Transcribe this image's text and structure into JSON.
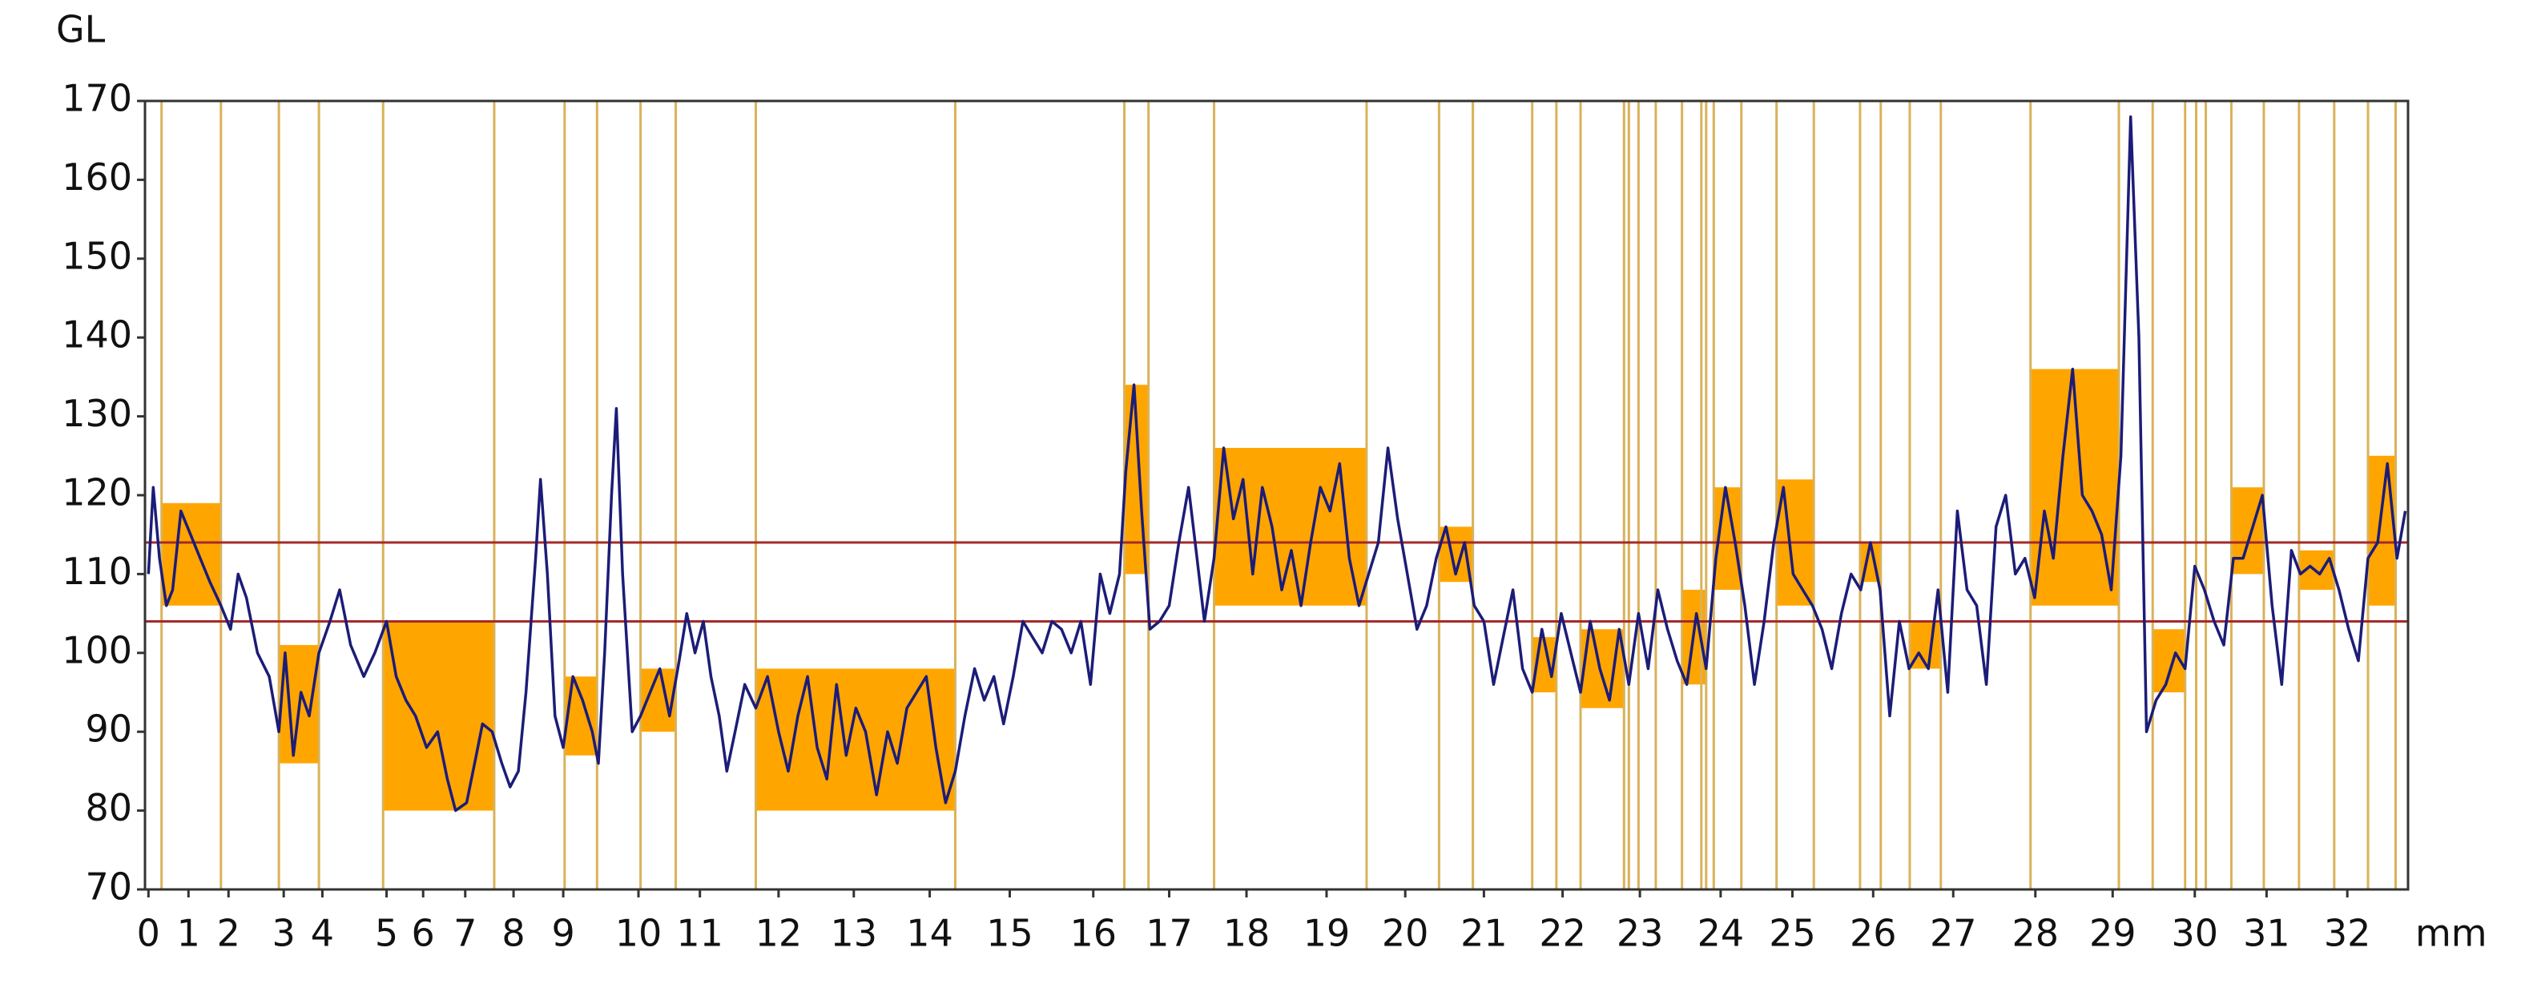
{
  "chart_data": {
    "type": "line",
    "y_label": "GL",
    "x_label": "mm",
    "color": "#1c1c78",
    "xlim": [
      -0.05,
      32.74
    ],
    "ylim": [
      70,
      170
    ],
    "yticks": [
      70,
      80,
      90,
      100,
      110,
      120,
      130,
      140,
      150,
      160,
      170
    ],
    "xticks": [
      {
        "value": 0,
        "label": "0"
      },
      {
        "value": 0.58,
        "label": "1"
      },
      {
        "value": 1.16,
        "label": "2"
      },
      {
        "value": 1.96,
        "label": "3"
      },
      {
        "value": 2.52,
        "label": "4"
      },
      {
        "value": 3.45,
        "label": "5"
      },
      {
        "value": 3.98,
        "label": "6"
      },
      {
        "value": 4.59,
        "label": "7"
      },
      {
        "value": 5.29,
        "label": "8"
      },
      {
        "value": 6.01,
        "label": "9"
      },
      {
        "value": 7.1,
        "label": "10"
      },
      {
        "value": 7.99,
        "label": "11"
      },
      {
        "value": 9.13,
        "label": "12"
      },
      {
        "value": 10.22,
        "label": "13"
      },
      {
        "value": 11.32,
        "label": "14"
      },
      {
        "value": 12.48,
        "label": "15"
      },
      {
        "value": 13.69,
        "label": "16"
      },
      {
        "value": 14.79,
        "label": "17"
      },
      {
        "value": 15.91,
        "label": "18"
      },
      {
        "value": 17.07,
        "label": "19"
      },
      {
        "value": 18.21,
        "label": "20"
      },
      {
        "value": 19.35,
        "label": "21"
      },
      {
        "value": 20.49,
        "label": "22"
      },
      {
        "value": 21.61,
        "label": "23"
      },
      {
        "value": 22.78,
        "label": "24"
      },
      {
        "value": 23.82,
        "label": "25"
      },
      {
        "value": 24.99,
        "label": "26"
      },
      {
        "value": 26.15,
        "label": "27"
      },
      {
        "value": 27.34,
        "label": "28"
      },
      {
        "value": 28.46,
        "label": "29"
      },
      {
        "value": 29.65,
        "label": "30"
      },
      {
        "value": 30.69,
        "label": "31"
      },
      {
        "value": 31.86,
        "label": "32"
      }
    ],
    "x": [
      0,
      0.07,
      0.16,
      0.26,
      0.35,
      0.47,
      0.61,
      0.75,
      0.89,
      1.05,
      1.19,
      1.3,
      1.42,
      1.58,
      1.75,
      1.89,
      1.98,
      2.1,
      2.21,
      2.33,
      2.47,
      2.63,
      2.77,
      2.93,
      3.12,
      3.28,
      3.45,
      3.59,
      3.73,
      3.87,
      4.03,
      4.19,
      4.33,
      4.45,
      4.61,
      4.75,
      4.84,
      4.98,
      5.12,
      5.24,
      5.36,
      5.47,
      5.61,
      5.68,
      5.78,
      5.89,
      6.01,
      6.15,
      6.29,
      6.43,
      6.52,
      6.61,
      6.71,
      6.78,
      6.87,
      7.01,
      7.13,
      7.27,
      7.41,
      7.55,
      7.69,
      7.8,
      7.92,
      8.04,
      8.15,
      8.27,
      8.38,
      8.5,
      8.64,
      8.8,
      8.97,
      9.13,
      9.27,
      9.41,
      9.55,
      9.69,
      9.83,
      9.97,
      10.11,
      10.25,
      10.39,
      10.55,
      10.71,
      10.85,
      10.99,
      11.13,
      11.27,
      11.41,
      11.55,
      11.69,
      11.83,
      11.97,
      12.11,
      12.25,
      12.39,
      12.53,
      12.67,
      12.81,
      12.95,
      13.09,
      13.23,
      13.37,
      13.51,
      13.65,
      13.79,
      13.93,
      14.07,
      14.16,
      14.28,
      14.39,
      14.51,
      14.65,
      14.79,
      14.93,
      15.07,
      15.18,
      15.3,
      15.44,
      15.58,
      15.72,
      15.86,
      16.0,
      16.14,
      16.28,
      16.42,
      16.56,
      16.7,
      16.84,
      16.98,
      17.12,
      17.26,
      17.4,
      17.54,
      17.68,
      17.82,
      17.96,
      18.1,
      18.24,
      18.38,
      18.52,
      18.66,
      18.8,
      18.94,
      19.07,
      19.21,
      19.35,
      19.49,
      19.63,
      19.77,
      19.91,
      20.05,
      20.19,
      20.33,
      20.47,
      20.61,
      20.75,
      20.89,
      21.03,
      21.17,
      21.31,
      21.45,
      21.59,
      21.73,
      21.87,
      22.01,
      22.15,
      22.29,
      22.43,
      22.57,
      22.71,
      22.85,
      22.99,
      23.13,
      23.27,
      23.41,
      23.55,
      23.69,
      23.83,
      23.97,
      24.11,
      24.25,
      24.39,
      24.53,
      24.67,
      24.81,
      24.95,
      25.09,
      25.23,
      25.37,
      25.51,
      25.65,
      25.79,
      25.93,
      26.07,
      26.21,
      26.35,
      26.49,
      26.63,
      26.77,
      26.91,
      27.05,
      27.19,
      27.33,
      27.47,
      27.6,
      27.74,
      27.88,
      28.02,
      28.16,
      28.3,
      28.44,
      28.58,
      28.72,
      28.84,
      28.95,
      29.09,
      29.23,
      29.37,
      29.51,
      29.65,
      29.79,
      29.93,
      30.07,
      30.21,
      30.35,
      30.49,
      30.63,
      30.77,
      30.91,
      31.05,
      31.18,
      31.32,
      31.46,
      31.6,
      31.74,
      31.88,
      32.02,
      32.16,
      32.3,
      32.44,
      32.58,
      32.7
    ],
    "values": [
      110,
      121,
      112,
      106,
      108,
      118,
      115,
      112,
      109,
      106,
      103,
      110,
      107,
      100,
      97,
      90,
      100,
      87,
      95,
      92,
      100,
      104,
      108,
      101,
      97,
      100,
      104,
      97,
      94,
      92,
      88,
      90,
      84,
      80,
      81,
      87,
      91,
      90,
      86,
      83,
      85,
      95,
      112,
      122,
      110,
      92,
      88,
      97,
      94,
      90,
      86,
      100,
      120,
      131,
      110,
      90,
      92,
      95,
      98,
      92,
      99,
      105,
      100,
      104,
      97,
      92,
      85,
      90,
      96,
      93,
      97,
      90,
      85,
      92,
      97,
      88,
      84,
      96,
      87,
      93,
      90,
      82,
      90,
      86,
      93,
      95,
      97,
      88,
      81,
      85,
      92,
      98,
      94,
      97,
      91,
      97,
      104,
      102,
      100,
      104,
      103,
      100,
      104,
      96,
      110,
      105,
      110,
      123,
      134,
      118,
      103,
      104,
      106,
      114,
      121,
      113,
      104,
      112,
      126,
      117,
      122,
      110,
      121,
      116,
      108,
      113,
      106,
      114,
      121,
      118,
      124,
      112,
      106,
      110,
      114,
      126,
      117,
      110,
      103,
      106,
      112,
      116,
      110,
      114,
      106,
      104,
      96,
      102,
      108,
      98,
      95,
      103,
      97,
      105,
      100,
      95,
      104,
      98,
      94,
      103,
      96,
      105,
      98,
      108,
      103,
      99,
      96,
      105,
      98,
      112,
      121,
      114,
      106,
      96,
      104,
      114,
      121,
      110,
      108,
      106,
      103,
      98,
      105,
      110,
      108,
      114,
      108,
      92,
      104,
      98,
      100,
      98,
      108,
      95,
      118,
      108,
      106,
      96,
      116,
      120,
      110,
      112,
      107,
      118,
      112,
      125,
      136,
      120,
      118,
      115,
      108,
      125,
      168,
      140,
      90,
      94,
      96,
      100,
      98,
      111,
      108,
      104,
      101,
      112,
      112,
      116,
      120,
      106,
      96,
      113,
      110,
      111,
      110,
      112,
      108,
      103,
      99,
      112,
      114,
      124,
      112,
      118
    ],
    "thresholds": [
      104,
      114
    ],
    "threshold_color": "#a52a2a",
    "region_color": "#ffa500",
    "vline_color": "#d9b25a",
    "regions": [
      {
        "x": [
          0.19,
          1.05
        ],
        "y": [
          106,
          119
        ]
      },
      {
        "x": [
          1.89,
          2.47
        ],
        "y": [
          86,
          101
        ]
      },
      {
        "x": [
          3.4,
          5.01
        ],
        "y": [
          80,
          104
        ]
      },
      {
        "x": [
          6.03,
          6.5
        ],
        "y": [
          87,
          97
        ]
      },
      {
        "x": [
          7.13,
          7.64
        ],
        "y": [
          90,
          98
        ]
      },
      {
        "x": [
          8.8,
          11.69
        ],
        "y": [
          80,
          98
        ]
      },
      {
        "x": [
          14.14,
          14.49
        ],
        "y": [
          110,
          134
        ]
      },
      {
        "x": [
          15.44,
          17.65
        ],
        "y": [
          106,
          126
        ]
      },
      {
        "x": [
          18.7,
          19.19
        ],
        "y": [
          109,
          116
        ]
      },
      {
        "x": [
          20.05,
          20.4
        ],
        "y": [
          95,
          102
        ]
      },
      {
        "x": [
          20.75,
          21.38
        ],
        "y": [
          93,
          103
        ]
      },
      {
        "x": [
          22.22,
          22.57
        ],
        "y": [
          96,
          108
        ]
      },
      {
        "x": [
          22.68,
          23.08
        ],
        "y": [
          108,
          121
        ]
      },
      {
        "x": [
          23.59,
          24.13
        ],
        "y": [
          106,
          122
        ]
      },
      {
        "x": [
          24.8,
          25.1
        ],
        "y": [
          109,
          114
        ]
      },
      {
        "x": [
          25.52,
          25.97
        ],
        "y": [
          98,
          104
        ]
      },
      {
        "x": [
          27.27,
          28.55
        ],
        "y": [
          106,
          136
        ]
      },
      {
        "x": [
          29.04,
          29.51
        ],
        "y": [
          95,
          103
        ]
      },
      {
        "x": [
          30.18,
          30.65
        ],
        "y": [
          110,
          121
        ]
      },
      {
        "x": [
          31.16,
          31.67
        ],
        "y": [
          108,
          113
        ]
      },
      {
        "x": [
          32.16,
          32.56
        ],
        "y": [
          106,
          125
        ]
      }
    ],
    "vlines": [
      0.19,
      1.05,
      1.89,
      2.47,
      3.4,
      5.01,
      6.03,
      6.5,
      7.13,
      7.64,
      8.8,
      11.69,
      14.14,
      14.49,
      15.44,
      17.65,
      18.7,
      19.19,
      20.05,
      20.4,
      20.75,
      21.38,
      21.45,
      21.59,
      21.84,
      22.22,
      22.5,
      22.57,
      22.68,
      23.08,
      23.59,
      24.13,
      24.8,
      25.1,
      25.52,
      25.97,
      27.27,
      28.55,
      29.04,
      29.51,
      29.67,
      29.81,
      30.18,
      30.65,
      31.16,
      31.67,
      32.16,
      32.56
    ]
  }
}
